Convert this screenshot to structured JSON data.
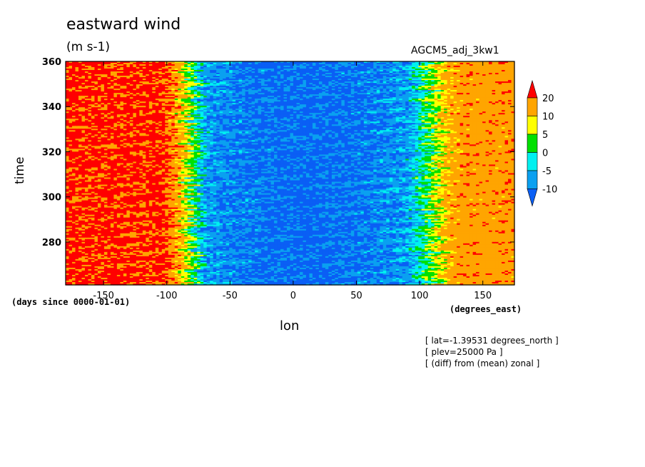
{
  "title": "eastward wind",
  "units": "(m s-1)",
  "model_name": "AGCM5_adj_3kw1",
  "xlabel": "lon",
  "ylabel": "time",
  "y_units": "(days since 0000-01-01)",
  "x_units": "(degrees_east)",
  "notes": [
    "[ lat=-1.39531 degrees_north ]",
    "[ plev=25000 Pa ]",
    "[ (diff) from (mean) zonal ]"
  ],
  "chart_data": {
    "type": "heatmap",
    "title": "eastward wind",
    "xlabel": "lon",
    "ylabel": "time",
    "xlim": [
      -180,
      175
    ],
    "ylim": [
      261,
      360
    ],
    "x_ticks": [
      -150,
      -100,
      -50,
      0,
      50,
      100,
      150
    ],
    "y_ticks": [
      280,
      300,
      320,
      340,
      360
    ],
    "colorbar": {
      "levels": [
        -10,
        -5,
        0,
        5,
        10,
        20
      ],
      "colors": [
        "#0a5ff5",
        "#0aa0f0",
        "#00f0f0",
        "#00e000",
        "#ffff00",
        "#ffa500",
        "#ff0000"
      ],
      "extend": "both"
    },
    "pattern": {
      "strong_westerly_lon_range": [
        -180,
        -100
      ],
      "easterly_lon_range": [
        -70,
        90
      ],
      "westerly_lon_range": [
        110,
        175
      ]
    }
  }
}
